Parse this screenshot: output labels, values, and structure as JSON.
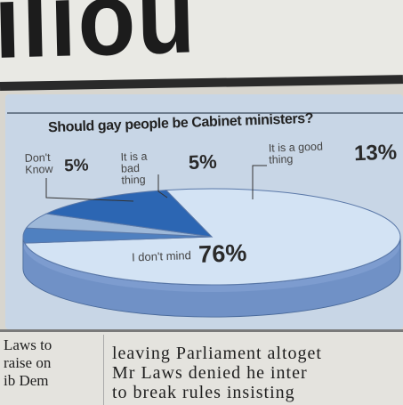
{
  "headline": {
    "fragment": "iliou"
  },
  "chart_data": {
    "type": "pie",
    "title": "Should gay people be Cabinet ministers?",
    "slices": [
      {
        "label": "I don't mind",
        "value": 76,
        "display": "76%",
        "color": "#d3e3f4"
      },
      {
        "label": "Don't Know",
        "value": 5,
        "display": "5%",
        "color": "#4f80c0"
      },
      {
        "label": "It is a bad thing",
        "value": 5,
        "display": "5%",
        "color": "#9eb8d8"
      },
      {
        "label": "It is a good thing",
        "value": 13,
        "display": "13%",
        "color": "#2c66b3"
      }
    ],
    "labels": {
      "dont_know": {
        "text": "Don't Know",
        "pct": "5%"
      },
      "bad_thing": {
        "text": "It is a bad thing",
        "pct": "5%"
      },
      "good_thing": {
        "text": "It is a good thing",
        "pct": "13%"
      },
      "dont_mind": {
        "text": "I don't mind",
        "pct": "76%"
      }
    }
  },
  "article": {
    "col1": [
      "Laws to",
      "raise on",
      "ib Dem"
    ],
    "col2": [
      "leaving Parliament altoget",
      "Mr Laws denied he inter",
      "to break rules insisting"
    ]
  }
}
